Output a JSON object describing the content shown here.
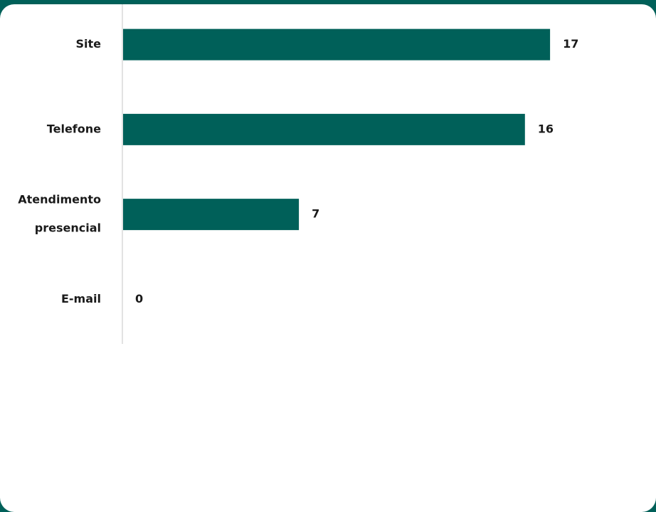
{
  "chart_data": {
    "type": "bar",
    "orientation": "horizontal",
    "title": "",
    "xlabel": "",
    "ylabel": "",
    "categories": [
      [
        "Site"
      ],
      [
        "Telefone"
      ],
      [
        "Atendimento",
        "presencial"
      ],
      [
        "E-mail"
      ]
    ],
    "values": [
      17,
      16,
      7,
      0
    ],
    "xlim": [
      0,
      18
    ],
    "grid": false,
    "legend": "none",
    "bar_color": "#006059",
    "axis_color": "#d9d9d9"
  }
}
